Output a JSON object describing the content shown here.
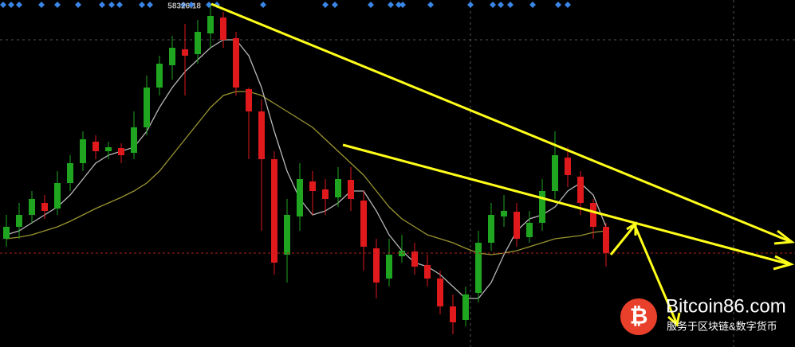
{
  "chart_data": {
    "type": "candlestick",
    "ylim": [
      41160,
      58600
    ],
    "up_color": "#1fa51f",
    "down_color": "#e0191c",
    "fast_color": "#b8b8b8",
    "slow_color": "#9a9430",
    "open": [
      46600,
      47200,
      47800,
      48400,
      48120,
      49400,
      50400,
      51480,
      51000,
      51160,
      50920,
      52200,
      54200,
      55320,
      56120,
      55880,
      56920,
      57720,
      56680,
      54120,
      53000,
      50600,
      45800,
      47720,
      49480,
      49080,
      48680,
      49560,
      48520,
      46120,
      44600,
      45720,
      45960,
      45280,
      44600,
      43200,
      42520,
      43880,
      46400,
      47720,
      47960,
      46680,
      47400,
      49000,
      50680,
      49720,
      48400,
      47200
    ],
    "high": [
      47800,
      48400,
      49000,
      48800,
      50000,
      50800,
      52000,
      51800,
      51480,
      51400,
      53000,
      54800,
      55800,
      56800,
      57400,
      57600,
      58326.18,
      58000,
      57000,
      54200,
      53600,
      51000,
      48600,
      50400,
      50000,
      49600,
      50200,
      50200,
      49000,
      46600,
      46600,
      46800,
      46400,
      45800,
      45000,
      43800,
      44200,
      47000,
      48400,
      48800,
      48400,
      48000,
      49600,
      52000,
      51200,
      50000,
      48600,
      47400
    ],
    "low": [
      46200,
      46600,
      47400,
      47600,
      47800,
      49000,
      50000,
      50600,
      50600,
      50400,
      50600,
      51800,
      53800,
      54600,
      53800,
      55400,
      56200,
      56200,
      53800,
      50600,
      47000,
      44800,
      44400,
      47000,
      47800,
      47800,
      48200,
      48000,
      45000,
      43600,
      44200,
      45400,
      44800,
      44200,
      42800,
      41800,
      42200,
      43400,
      46000,
      47200,
      46200,
      46400,
      47000,
      48600,
      49200,
      47800,
      46600,
      45200
    ],
    "close": [
      47200,
      47800,
      48600,
      48000,
      49400,
      50400,
      51600,
      51000,
      51200,
      50800,
      52200,
      54200,
      55400,
      56200,
      55800,
      57000,
      57800,
      56600,
      54200,
      53000,
      50600,
      45400,
      47800,
      49600,
      49000,
      48600,
      49600,
      48600,
      46200,
      44400,
      45800,
      46000,
      45200,
      44600,
      43200,
      42400,
      43800,
      46400,
      47800,
      48000,
      46600,
      47400,
      49000,
      50800,
      49800,
      48400,
      47200,
      45880
    ],
    "ma_fast": [
      46800,
      47000,
      47400,
      47800,
      48200,
      48800,
      49600,
      50400,
      50800,
      51000,
      51200,
      52000,
      53200,
      54200,
      55000,
      55600,
      56200,
      56600,
      56600,
      55800,
      54200,
      52000,
      50000,
      48600,
      47800,
      48000,
      48400,
      49000,
      49000,
      48000,
      46800,
      46000,
      45400,
      45200,
      44800,
      44200,
      43600,
      43600,
      44400,
      45800,
      47000,
      47600,
      47800,
      48200,
      49000,
      49400,
      48800,
      47200
    ],
    "ma_slow": [
      46600,
      46680,
      46800,
      47000,
      47200,
      47480,
      47800,
      48120,
      48400,
      48680,
      49000,
      49400,
      50000,
      50800,
      51600,
      52400,
      53200,
      53800,
      54000,
      54000,
      53800,
      53400,
      53000,
      52600,
      52200,
      51600,
      51000,
      50400,
      49800,
      49000,
      48200,
      47600,
      47200,
      46800,
      46600,
      46400,
      46120,
      45880,
      45800,
      45880,
      46000,
      46200,
      46400,
      46600,
      46680,
      46760,
      46920,
      47000
    ]
  },
  "watermark": {
    "logo": "₿",
    "title": "Bitcoin86.com",
    "subtitle": "服务于区块链&数字货币"
  }
}
